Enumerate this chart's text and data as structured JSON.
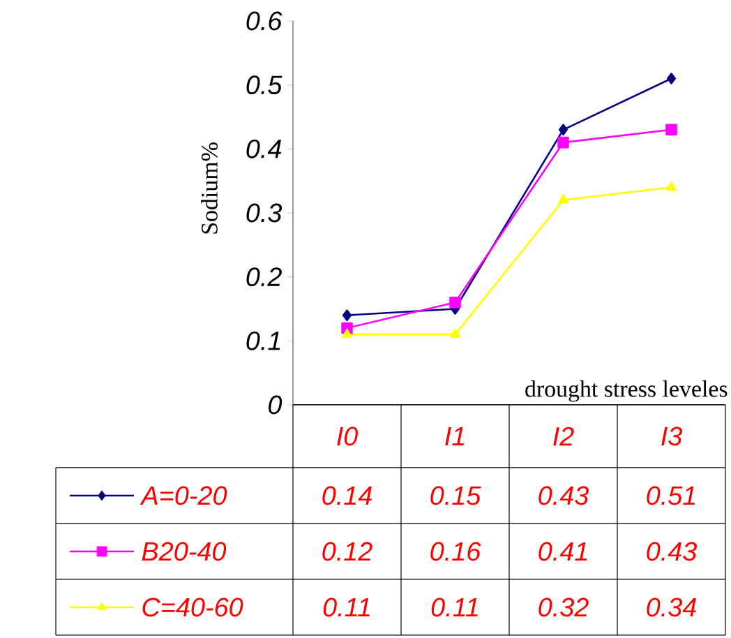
{
  "chart_data": {
    "type": "line",
    "xlabel": "drought stress leveles",
    "ylabel": "Sodium%",
    "categories": [
      "I0",
      "I1",
      "I2",
      "I3"
    ],
    "series": [
      {
        "name": "A=0-20",
        "color": "#000080",
        "marker": "diamond",
        "values": [
          0.14,
          0.15,
          0.43,
          0.51
        ]
      },
      {
        "name": "B20-40",
        "color": "#ff00ff",
        "marker": "square",
        "values": [
          0.12,
          0.16,
          0.41,
          0.43
        ]
      },
      {
        "name": "C=40-60",
        "color": "#ffff00",
        "marker": "triangle",
        "values": [
          0.11,
          0.11,
          0.32,
          0.34
        ]
      }
    ],
    "ylim": [
      0,
      0.6
    ],
    "yticks": [
      0,
      0.1,
      0.2,
      0.3,
      0.4,
      0.5,
      0.6
    ],
    "data_labels": true,
    "legend": "bottom"
  }
}
